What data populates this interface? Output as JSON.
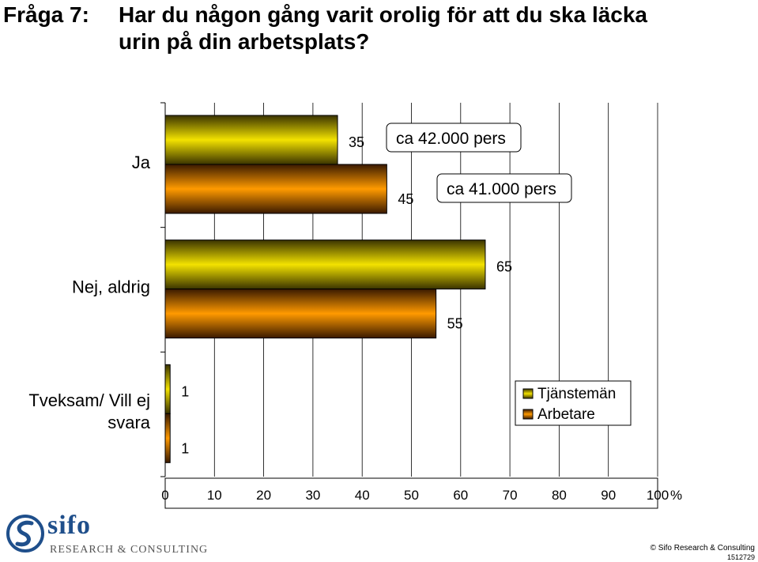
{
  "title": {
    "prefix": "Fråga 7:",
    "line1": "Har du någon gång varit orolig för att du ska läcka",
    "line2": "urin på din arbetsplats?"
  },
  "chart_data": {
    "type": "bar",
    "orientation": "horizontal",
    "categories": [
      "Ja",
      "Nej, aldrig",
      "Tveksam/ Vill ej svara"
    ],
    "category_lines": [
      [
        "Ja"
      ],
      [
        "Nej, aldrig"
      ],
      [
        "Tveksam/ Vill ej",
        "svara"
      ]
    ],
    "series": [
      {
        "name": "Tjänstemän",
        "values": [
          35,
          65,
          1
        ],
        "color": "#f3e200",
        "color_dark": "#3a3300"
      },
      {
        "name": "Arbetare",
        "values": [
          45,
          55,
          1
        ],
        "color": "#ff9a00",
        "color_dark": "#3a1a00"
      }
    ],
    "xlim": [
      0,
      100
    ],
    "xticks": [
      0,
      10,
      20,
      30,
      40,
      50,
      60,
      70,
      80,
      90,
      100
    ],
    "x_unit": "%",
    "grid": "vertical",
    "legend": "right",
    "annotations": [
      "ca 42.000 pers",
      "ca 41.000 pers"
    ]
  },
  "footer": {
    "brand": "sifo",
    "subtitle": "RESEARCH & CONSULTING",
    "copyright": "© Sifo Research & Consulting",
    "code": "1512729"
  }
}
